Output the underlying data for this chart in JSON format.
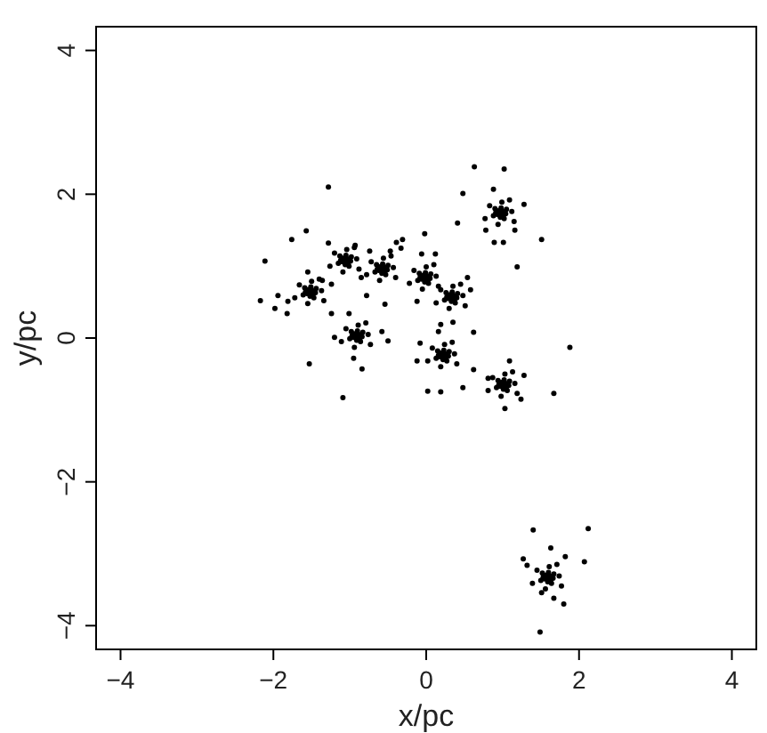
{
  "chart_data": {
    "type": "scatter",
    "xlabel": "x/pc",
    "ylabel": "y/pc",
    "xlim": [
      -4.32,
      4.32
    ],
    "ylim": [
      -4.33,
      4.33
    ],
    "xticks": [
      {
        "value": -4,
        "label": "−4"
      },
      {
        "value": -2,
        "label": "−2"
      },
      0,
      2,
      4
    ],
    "yticks": [
      {
        "value": -4,
        "label": "−4"
      },
      {
        "value": -2,
        "label": "−2"
      },
      0,
      2,
      4
    ],
    "color": "#000000",
    "marker": "circle",
    "x": [
      -1.52,
      -1.44,
      -1.59,
      -1.47,
      -1.61,
      -1.37,
      -1.66,
      -1.5,
      -1.55,
      -1.34,
      -1.72,
      -1.4,
      -1.81,
      -1.94,
      -1.82,
      -1.55,
      -1.36,
      -1.24,
      -1.06,
      -0.98,
      -1.13,
      -1.01,
      -1.15,
      -0.91,
      -1.2,
      -1.04,
      -1.09,
      -0.88,
      -1.26,
      -0.94,
      -1.28,
      -0.93,
      -1.24,
      -0.85,
      -0.58,
      -0.5,
      -0.65,
      -0.53,
      -0.67,
      -0.43,
      -0.72,
      -0.56,
      -0.61,
      -0.4,
      -0.78,
      -0.46,
      -0.39,
      -0.47,
      -0.78,
      -0.54,
      -0.74,
      -0.33,
      -0.91,
      -0.83,
      -0.98,
      -0.86,
      -1.0,
      -0.76,
      -1.05,
      -0.89,
      -0.94,
      -0.73,
      -1.11,
      -0.79,
      -1.2,
      -0.58,
      -0.95,
      -1.01,
      -0.02,
      0.06,
      -0.09,
      0.03,
      -0.11,
      0.13,
      -0.16,
      0.0,
      -0.05,
      0.16,
      -0.22,
      0.1,
      -0.06,
      0.12,
      -0.12,
      0.33,
      0.41,
      0.26,
      0.38,
      0.24,
      0.48,
      0.19,
      0.35,
      0.3,
      0.51,
      0.13,
      0.45,
      0.54,
      0.58,
      0.35,
      0.19,
      0.22,
      0.3,
      0.15,
      0.27,
      0.13,
      0.37,
      0.08,
      0.24,
      0.19,
      0.4,
      0.02,
      0.34,
      -0.08,
      -0.12,
      0.16,
      1.01,
      1.09,
      0.94,
      1.06,
      0.92,
      1.16,
      0.87,
      1.03,
      0.98,
      1.19,
      0.81,
      1.13,
      1.28,
      1.24,
      1.09,
      0.81,
      0.97,
      1.05,
      0.9,
      1.02,
      0.88,
      1.12,
      0.83,
      0.99,
      0.94,
      1.15,
      0.77,
      1.09,
      0.78,
      1.16,
      0.89,
      1.01,
      1.59,
      1.67,
      1.52,
      1.64,
      1.5,
      1.74,
      1.45,
      1.61,
      1.56,
      1.77,
      1.39,
      1.71,
      1.32,
      1.82,
      1.63,
      1.51,
      1.67,
      -1.28,
      0.63,
      1.02,
      0.48,
      0.88,
      0.41,
      1.28,
      1.51,
      1.19,
      1.88,
      1.67,
      1.03,
      -1.09,
      -1.53,
      -0.84,
      -2.17,
      -2.11,
      -1.76,
      -1.57,
      -0.02,
      0.02,
      0.19,
      0.48,
      0.62,
      0.62,
      1.4,
      2.12,
      2.07,
      1.8,
      1.49,
      1.27,
      -0.5,
      -1.98,
      -0.31,
      -1.49,
      -1.55,
      -1.48,
      -1.56,
      -1.51,
      -1.45,
      -1.58,
      -1.52,
      -1.03,
      -1.09,
      -1.02,
      -1.1,
      -1.05,
      -0.99,
      -1.12,
      -1.06,
      -0.55,
      -0.61,
      -0.54,
      -0.62,
      -0.57,
      -0.51,
      -0.64,
      -0.58,
      -0.88,
      -0.94,
      -0.87,
      -0.95,
      -0.9,
      -0.84,
      -0.97,
      -0.91,
      0.01,
      -0.05,
      0.02,
      -0.06,
      -0.01,
      0.05,
      -0.08,
      -0.02,
      0.36,
      0.3,
      0.37,
      0.29,
      0.34,
      0.4,
      0.27,
      0.33,
      0.25,
      0.19,
      0.26,
      0.18,
      0.23,
      0.29,
      0.16,
      0.22,
      1.04,
      0.98,
      1.05,
      0.97,
      1.02,
      1.08,
      0.95,
      1.01,
      1.0,
      0.94,
      1.01,
      0.93,
      0.98,
      1.04,
      0.91,
      0.97,
      1.62,
      1.56,
      1.63,
      1.55,
      1.6,
      1.66,
      1.53,
      1.59
    ],
    "values": [
      0.64,
      0.69,
      0.7,
      0.56,
      0.6,
      0.66,
      0.74,
      0.79,
      0.48,
      0.52,
      0.56,
      0.82,
      0.51,
      0.59,
      0.34,
      0.92,
      0.8,
      0.34,
      1.08,
      1.13,
      1.14,
      1.0,
      1.04,
      1.1,
      1.18,
      1.23,
      0.92,
      0.96,
      1.0,
      1.26,
      1.32,
      1.29,
      0.75,
      0.84,
      0.96,
      1.01,
      1.02,
      0.88,
      0.92,
      0.98,
      1.06,
      1.11,
      0.8,
      0.84,
      0.88,
      1.14,
      1.33,
      1.21,
      0.59,
      0.47,
      1.21,
      1.25,
      0.03,
      0.08,
      0.09,
      -0.05,
      -0.01,
      0.05,
      0.13,
      0.18,
      -0.13,
      -0.09,
      -0.05,
      0.21,
      0.01,
      0.09,
      -0.28,
      0.34,
      0.84,
      0.89,
      0.9,
      0.76,
      0.8,
      0.86,
      0.94,
      0.99,
      0.68,
      0.72,
      0.76,
      1.02,
      1.17,
      1.17,
      0.51,
      0.57,
      0.62,
      0.63,
      0.49,
      0.53,
      0.59,
      0.67,
      0.72,
      0.41,
      0.45,
      0.49,
      0.75,
      0.84,
      0.67,
      0.22,
      0.19,
      -0.24,
      -0.19,
      -0.18,
      -0.32,
      -0.28,
      -0.22,
      -0.14,
      -0.09,
      -0.4,
      -0.36,
      -0.32,
      -0.06,
      -0.07,
      -0.32,
      0.09,
      -0.65,
      -0.6,
      -0.59,
      -0.73,
      -0.69,
      -0.63,
      -0.55,
      -0.5,
      -0.81,
      -0.77,
      -0.73,
      -0.47,
      -0.52,
      -0.85,
      -0.32,
      -0.56,
      1.74,
      1.79,
      1.8,
      1.66,
      1.7,
      1.76,
      1.84,
      1.89,
      1.58,
      1.62,
      1.66,
      1.92,
      1.5,
      1.5,
      1.33,
      1.33,
      -3.33,
      -3.28,
      -3.27,
      -3.41,
      -3.37,
      -3.31,
      -3.23,
      -3.18,
      -3.49,
      -3.45,
      -3.41,
      -3.15,
      -3.16,
      -3.04,
      -2.92,
      -3.54,
      -3.62,
      2.1,
      2.38,
      2.35,
      2.01,
      2.07,
      1.6,
      1.86,
      1.37,
      0.99,
      -0.13,
      -0.77,
      -0.98,
      -0.83,
      -0.36,
      -0.43,
      0.52,
      1.07,
      1.37,
      1.49,
      1.45,
      -0.74,
      -0.75,
      -0.69,
      -0.44,
      0.08,
      -2.67,
      -2.65,
      -3.11,
      -3.7,
      -4.09,
      -3.07,
      -0.04,
      0.41,
      1.37,
      0.66,
      0.67,
      0.61,
      0.62,
      0.71,
      0.63,
      0.64,
      0.58,
      1.1,
      1.11,
      1.05,
      1.06,
      1.15,
      1.07,
      1.08,
      1.02,
      0.98,
      0.99,
      0.93,
      0.94,
      1.03,
      0.95,
      0.96,
      0.9,
      0.05,
      0.06,
      0.0,
      0.01,
      0.1,
      0.02,
      0.03,
      -0.03,
      0.86,
      0.87,
      0.81,
      0.82,
      0.91,
      0.83,
      0.84,
      0.78,
      0.59,
      0.6,
      0.54,
      0.55,
      0.64,
      0.56,
      0.57,
      0.51,
      -0.22,
      -0.21,
      -0.27,
      -0.26,
      -0.17,
      -0.25,
      -0.24,
      -0.3,
      -0.63,
      -0.62,
      -0.68,
      -0.67,
      -0.58,
      -0.66,
      -0.65,
      -0.71,
      1.76,
      1.77,
      1.71,
      1.72,
      1.81,
      1.73,
      1.74,
      1.68,
      -3.31,
      -3.3,
      -3.36,
      -3.35,
      -3.26,
      -3.34,
      -3.33,
      -3.39
    ]
  }
}
